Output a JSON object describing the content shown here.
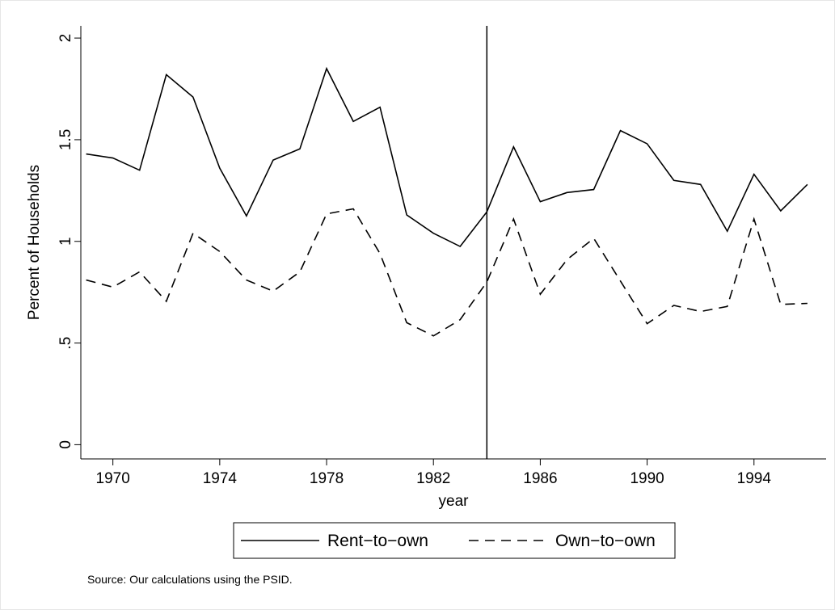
{
  "chart_data": {
    "type": "line",
    "y_label": "Percent of Households",
    "x_label": "year",
    "note": "Source: Our calculations using the PSID.",
    "x": [
      1969,
      1970,
      1971,
      1972,
      1973,
      1974,
      1975,
      1976,
      1977,
      1978,
      1979,
      1980,
      1981,
      1982,
      1983,
      1984,
      1985,
      1986,
      1987,
      1988,
      1989,
      1990,
      1991,
      1992,
      1993,
      1994,
      1995,
      1996
    ],
    "series": [
      {
        "name": "Rent−to−own",
        "color": "#000000",
        "dash": "solid",
        "values": [
          1.43,
          1.41,
          1.35,
          1.82,
          1.71,
          1.36,
          1.125,
          1.4,
          1.455,
          1.85,
          1.59,
          1.66,
          1.13,
          1.04,
          0.975,
          1.145,
          1.465,
          1.195,
          1.24,
          1.255,
          1.545,
          1.48,
          1.3,
          1.28,
          1.05,
          1.33,
          1.15,
          1.28
        ]
      },
      {
        "name": "Own−to−own",
        "color": "#000000",
        "dash": "dashed",
        "values": [
          0.81,
          0.775,
          0.85,
          0.705,
          1.04,
          0.95,
          0.81,
          0.755,
          0.85,
          1.135,
          1.16,
          0.94,
          0.6,
          0.535,
          0.615,
          0.8,
          1.11,
          0.74,
          0.91,
          1.015,
          0.805,
          0.595,
          0.685,
          0.655,
          0.68,
          1.11,
          0.69,
          0.695
        ]
      }
    ],
    "vline": 1984,
    "xlim": [
      1968.8,
      1996.7
    ],
    "xticks": [
      1970,
      1974,
      1978,
      1982,
      1986,
      1990,
      1994
    ],
    "ylim": [
      -0.07,
      2.06
    ],
    "yticks": [
      0,
      {
        "value": 0.5,
        "label": ".5"
      },
      1,
      1.5,
      2
    ],
    "legend": "bottom"
  }
}
